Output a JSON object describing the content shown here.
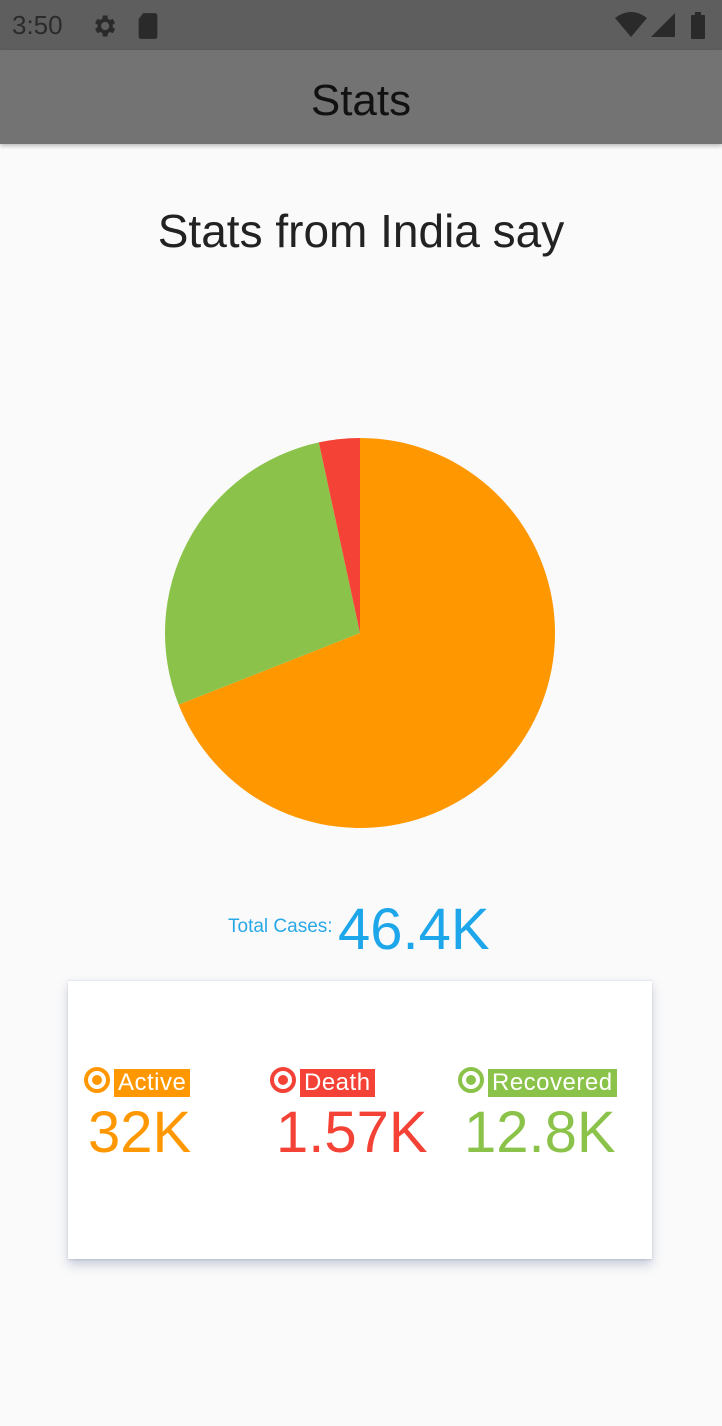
{
  "status_bar": {
    "time": "3:50"
  },
  "app_bar": {
    "title": "Stats"
  },
  "heading": "Stats from India say",
  "colors": {
    "active": "#ff9800",
    "death": "#f44336",
    "recovered": "#8bc34a",
    "total": "#1ea6ea"
  },
  "chart_data": {
    "type": "pie",
    "title": "",
    "series": [
      {
        "name": "Active",
        "value": 32000,
        "color": "#ff9800"
      },
      {
        "name": "Recovered",
        "value": 12800,
        "color": "#8bc34a"
      },
      {
        "name": "Death",
        "value": 1570,
        "color": "#f44336"
      }
    ]
  },
  "total": {
    "label": "Total Cases:",
    "value": "46.4K"
  },
  "stats": [
    {
      "label": "Active",
      "value": "32K"
    },
    {
      "label": "Death",
      "value": "1.57K"
    },
    {
      "label": "Recovered",
      "value": "12.8K"
    }
  ]
}
